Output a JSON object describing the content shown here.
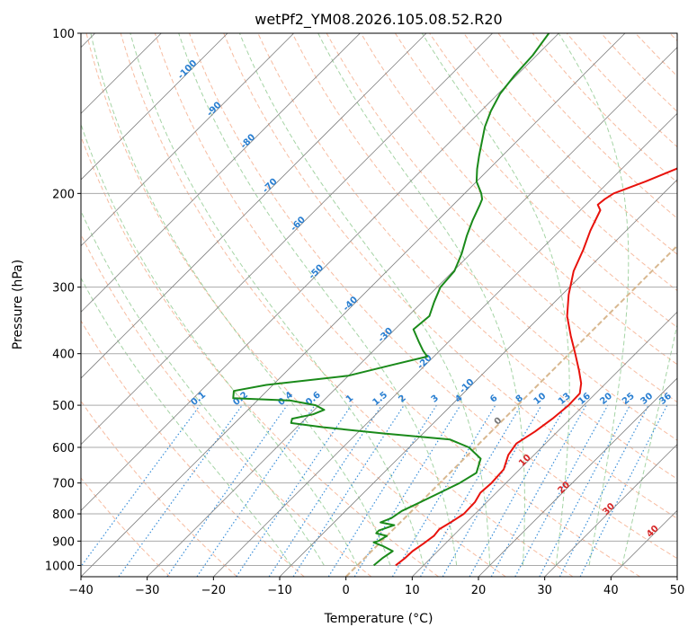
{
  "chart_data": {
    "type": "line",
    "title": "wetPf2_YM08.2026.105.08.52.R20",
    "xlabel": "Temperature (°C)",
    "ylabel": "Pressure (hPa)",
    "xlim": [
      -40,
      50
    ],
    "ylim": [
      1050,
      100
    ],
    "y_scale": "log",
    "x_ticks": [
      -40,
      -30,
      -20,
      -10,
      0,
      10,
      20,
      30,
      40,
      50
    ],
    "x_tick_labels": [
      "−40",
      "−30",
      "−20",
      "−10",
      "0",
      "10",
      "20",
      "30",
      "40",
      "50"
    ],
    "y_ticks": [
      100,
      200,
      300,
      400,
      500,
      600,
      700,
      800,
      900,
      1000
    ],
    "y_tick_labels": [
      "100",
      "200",
      "300",
      "400",
      "500",
      "600",
      "700",
      "800",
      "900",
      "1000"
    ],
    "grid": true,
    "skew_degrees": 45,
    "series": [
      {
        "color": "#e8120c",
        "points": [
          [
            1000,
            5.8
          ],
          [
            970,
            6.1
          ],
          [
            940,
            6.2
          ],
          [
            910,
            6.7
          ],
          [
            880,
            7.1
          ],
          [
            855,
            6.9
          ],
          [
            830,
            7.6
          ],
          [
            800,
            8.3
          ],
          [
            760,
            8.2
          ],
          [
            730,
            7.6
          ],
          [
            700,
            7.8
          ],
          [
            660,
            7.6
          ],
          [
            620,
            6.1
          ],
          [
            590,
            5.6
          ],
          [
            560,
            6.6
          ],
          [
            530,
            7.3
          ],
          [
            500,
            7.7
          ],
          [
            475,
            7.6
          ],
          [
            455,
            6.3
          ],
          [
            430,
            4.0
          ],
          [
            400,
            0.9
          ],
          [
            370,
            -2.5
          ],
          [
            340,
            -6.0
          ],
          [
            310,
            -9.0
          ],
          [
            280,
            -11.8
          ],
          [
            255,
            -13.6
          ],
          [
            235,
            -15.4
          ],
          [
            215,
            -17.0
          ],
          [
            210,
            -18.2
          ],
          [
            205,
            -18.0
          ],
          [
            200,
            -17.5
          ],
          [
            190,
            -14.5
          ],
          [
            180,
            -11.8
          ],
          [
            170,
            -10.0
          ],
          [
            160,
            -9.2
          ],
          [
            150,
            -9.5
          ],
          [
            140,
            -11.5
          ],
          [
            130,
            -13.7
          ],
          [
            120,
            -15.5
          ],
          [
            110,
            -16.8
          ],
          [
            105,
            -17.0
          ],
          [
            100,
            -17.4
          ]
        ]
      },
      {
        "color": "#1a8a1a",
        "points": [
          [
            1000,
            2.5
          ],
          [
            970,
            2.7
          ],
          [
            940,
            3.2
          ],
          [
            920,
            1.0
          ],
          [
            905,
            -1.0
          ],
          [
            900,
            -0.5
          ],
          [
            880,
            0.0
          ],
          [
            870,
            -2.0
          ],
          [
            860,
            -2.0
          ],
          [
            840,
            -0.5
          ],
          [
            830,
            -3.0
          ],
          [
            815,
            -2.0
          ],
          [
            790,
            -1.5
          ],
          [
            770,
            -0.5
          ],
          [
            750,
            0.5
          ],
          [
            720,
            2.0
          ],
          [
            700,
            3.0
          ],
          [
            670,
            4.0
          ],
          [
            630,
            2.5
          ],
          [
            600,
            -1.0
          ],
          [
            580,
            -5.0
          ],
          [
            565,
            -16.0
          ],
          [
            550,
            -26.0
          ],
          [
            540,
            -31.5
          ],
          [
            530,
            -32.0
          ],
          [
            520,
            -29.5
          ],
          [
            510,
            -28.5
          ],
          [
            500,
            -30.5
          ],
          [
            490,
            -35.0
          ],
          [
            485,
            -44.0
          ],
          [
            470,
            -45.0
          ],
          [
            458,
            -41.0
          ],
          [
            440,
            -30.0
          ],
          [
            420,
            -25.0
          ],
          [
            405,
            -21.0
          ],
          [
            395,
            -22.5
          ],
          [
            380,
            -24.5
          ],
          [
            360,
            -27.2
          ],
          [
            340,
            -26.8
          ],
          [
            320,
            -28.2
          ],
          [
            300,
            -29.5
          ],
          [
            280,
            -29.8
          ],
          [
            260,
            -31.3
          ],
          [
            240,
            -33.3
          ],
          [
            225,
            -34.7
          ],
          [
            210,
            -36.0
          ],
          [
            205,
            -36.5
          ],
          [
            200,
            -37.5
          ],
          [
            190,
            -40.0
          ],
          [
            180,
            -41.8
          ],
          [
            170,
            -43.5
          ],
          [
            160,
            -45.2
          ],
          [
            150,
            -47.0
          ],
          [
            140,
            -48.5
          ],
          [
            130,
            -49.7
          ],
          [
            120,
            -50.3
          ],
          [
            110,
            -50.6
          ],
          [
            100,
            -51.5
          ]
        ]
      }
    ],
    "mixing_ratio_labels": [
      "0.1",
      "0.2",
      "0.4",
      "0.6",
      "1",
      "1.5",
      "2",
      "3",
      "4",
      "6",
      "8",
      "10",
      "13",
      "16",
      "20",
      "25",
      "30",
      "36"
    ],
    "moist_adiabat_labels": [
      "-100",
      "-90",
      "-80",
      "-70",
      "-60",
      "-50",
      "-40",
      "-30",
      "-20",
      "-10"
    ],
    "moist_adiabat_low_labels": [
      "0",
      "10",
      "20",
      "30",
      "40"
    ],
    "colors": {
      "isotherm": "#808080",
      "isobar": "#aaaaaa",
      "dry_adiabat": "#f4a582",
      "moist_adiabat": "#8fc98f",
      "mixing_ratio": "#3a8fd9",
      "freezing_line": "#d8b890",
      "label_blue": "#2a7fd1",
      "label_red": "#d62728",
      "label_grey": "#777777"
    }
  }
}
